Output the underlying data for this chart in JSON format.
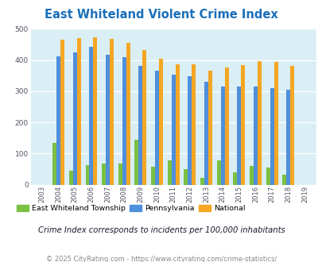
{
  "title": "East Whiteland Violent Crime Index",
  "years": [
    2003,
    2004,
    2005,
    2006,
    2007,
    2008,
    2009,
    2010,
    2011,
    2012,
    2013,
    2014,
    2015,
    2016,
    2017,
    2018,
    2019
  ],
  "east_whiteland": [
    0,
    133,
    44,
    62,
    68,
    68,
    143,
    58,
    77,
    50,
    22,
    78,
    40,
    59,
    54,
    31,
    0
  ],
  "pennsylvania": [
    0,
    411,
    424,
    441,
    418,
    410,
    381,
    367,
    354,
    348,
    329,
    314,
    314,
    314,
    311,
    305,
    0
  ],
  "national": [
    0,
    465,
    470,
    474,
    467,
    455,
    431,
    405,
    387,
    387,
    367,
    376,
    384,
    397,
    394,
    380,
    0
  ],
  "color_east": "#7bc043",
  "color_pa": "#4f8fdb",
  "color_national": "#f5a623",
  "bg_color": "#daeef5",
  "ylim": [
    0,
    500
  ],
  "yticks": [
    0,
    100,
    200,
    300,
    400,
    500
  ],
  "subtitle": "Crime Index corresponds to incidents per 100,000 inhabitants",
  "footer": "© 2025 CityRating.com - https://www.cityrating.com/crime-statistics/",
  "legend_labels": [
    "East Whiteland Township",
    "Pennsylvania",
    "National"
  ],
  "title_color": "#1a6fba",
  "subtitle_color": "#1a1a2e",
  "footer_color": "#888888"
}
